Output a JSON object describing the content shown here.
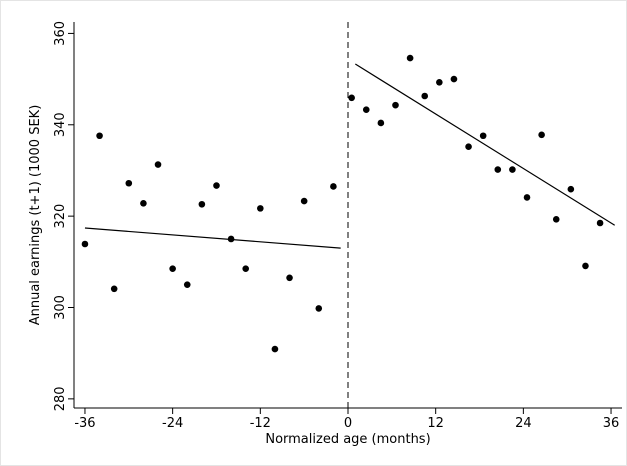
{
  "chart_data": {
    "type": "scatter",
    "xlabel": "Normalized age (months)",
    "ylabel": "Annual earnings (t+1) (1000 SEK)",
    "xlim": [
      -37.5,
      37.5
    ],
    "ylim": [
      278,
      362.5
    ],
    "xticks": [
      -36,
      -24,
      -12,
      0,
      12,
      24,
      36
    ],
    "yticks": [
      280,
      300,
      320,
      340,
      360
    ],
    "vline": 0,
    "series": [
      {
        "kind": "scatter",
        "color": "#000000",
        "x": [
          -36,
          -34,
          -32,
          -30,
          -28,
          -26,
          -24,
          -22,
          -20,
          -18,
          -16,
          -14,
          -12,
          -10,
          -8,
          -6,
          -4,
          -2
        ],
        "values": [
          313.9,
          337.6,
          304.1,
          327.2,
          322.8,
          331.3,
          308.5,
          305.0,
          322.6,
          326.7,
          315.0,
          308.5,
          321.7,
          290.9,
          306.5,
          323.3,
          299.8,
          326.5
        ]
      },
      {
        "kind": "scatter",
        "color": "#000000",
        "x": [
          0.5,
          2.5,
          4.5,
          6.5,
          8.5,
          10.5,
          12.5,
          14.5,
          16.5,
          18.5,
          20.5,
          22.5,
          24.5,
          26.5,
          28.5,
          30.5,
          32.5,
          34.5
        ],
        "values": [
          345.9,
          343.3,
          340.4,
          344.3,
          354.6,
          346.3,
          349.3,
          350.0,
          335.2,
          337.6,
          330.2,
          330.2,
          324.1,
          337.8,
          319.3,
          325.9,
          309.1,
          318.5
        ]
      },
      {
        "kind": "line",
        "color": "#000000",
        "x": [
          -36,
          -1
        ],
        "values": [
          317.4,
          313.0
        ]
      },
      {
        "kind": "line",
        "color": "#000000",
        "x": [
          1,
          36.5
        ],
        "values": [
          353.3,
          318.0
        ]
      }
    ]
  }
}
